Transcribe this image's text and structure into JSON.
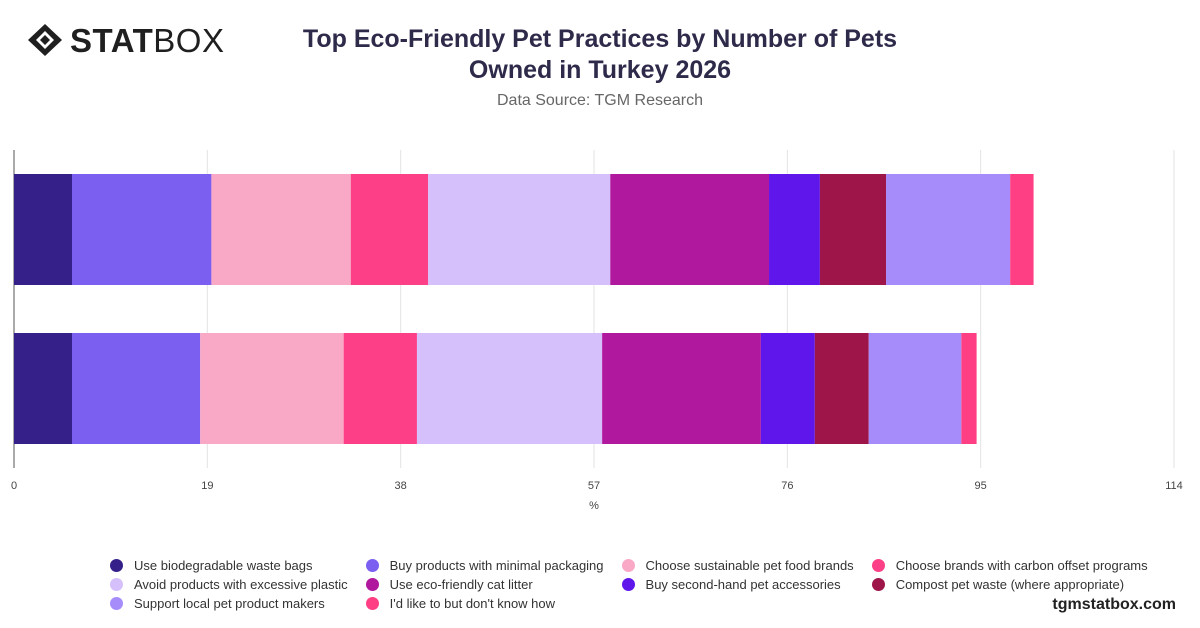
{
  "header": {
    "logo_bold": "STAT",
    "logo_thin": "BOX",
    "title_line1": "Top Eco-Friendly Pet Practices by Number of Pets",
    "title_line2": "Owned in Turkey 2026",
    "subtitle": "Data Source: TGM Research"
  },
  "footer": {
    "site": "tgmstatbox.com"
  },
  "chart_data": {
    "type": "bar",
    "orientation": "horizontal",
    "stacked": true,
    "title": "Top Eco-Friendly Pet Practices by Number of Pets Owned in Turkey 2026",
    "subtitle": "Data Source: TGM Research",
    "xlabel": "%",
    "ylabel": "",
    "xlim": [
      0,
      114
    ],
    "x_ticks": [
      0,
      19,
      38,
      57,
      76,
      95,
      114
    ],
    "grid": true,
    "legend_position": "bottom",
    "categories": [
      "",
      ""
    ],
    "series": [
      {
        "name": "Use biodegradable waste bags",
        "color": "#35208a",
        "values": [
          5.7,
          5.7
        ]
      },
      {
        "name": "Buy products with minimal packaging",
        "color": "#7b5ff0",
        "values": [
          13.7,
          12.6
        ]
      },
      {
        "name": "Choose sustainable pet food brands",
        "color": "#f9a8c6",
        "values": [
          13.7,
          14.1
        ]
      },
      {
        "name": "Choose brands with carbon offset programs",
        "color": "#fc3f86",
        "values": [
          7.6,
          7.2
        ]
      },
      {
        "name": "Avoid products with excessive plastic",
        "color": "#d6c0fb",
        "values": [
          17.9,
          18.2
        ]
      },
      {
        "name": "Use eco-friendly cat litter",
        "color": "#b0189e",
        "values": [
          15.6,
          15.6
        ]
      },
      {
        "name": "Buy second-hand pet accessories",
        "color": "#5e16eb",
        "values": [
          5.0,
          5.3
        ]
      },
      {
        "name": "Compost pet waste (where appropriate)",
        "color": "#9e1549",
        "values": [
          6.5,
          5.3
        ]
      },
      {
        "name": "Support local pet product makers",
        "color": "#a68cfa",
        "values": [
          12.2,
          9.1
        ]
      },
      {
        "name": "I'd like to but don't know how",
        "color": "#ff3f83",
        "values": [
          2.3,
          1.5
        ]
      }
    ]
  }
}
